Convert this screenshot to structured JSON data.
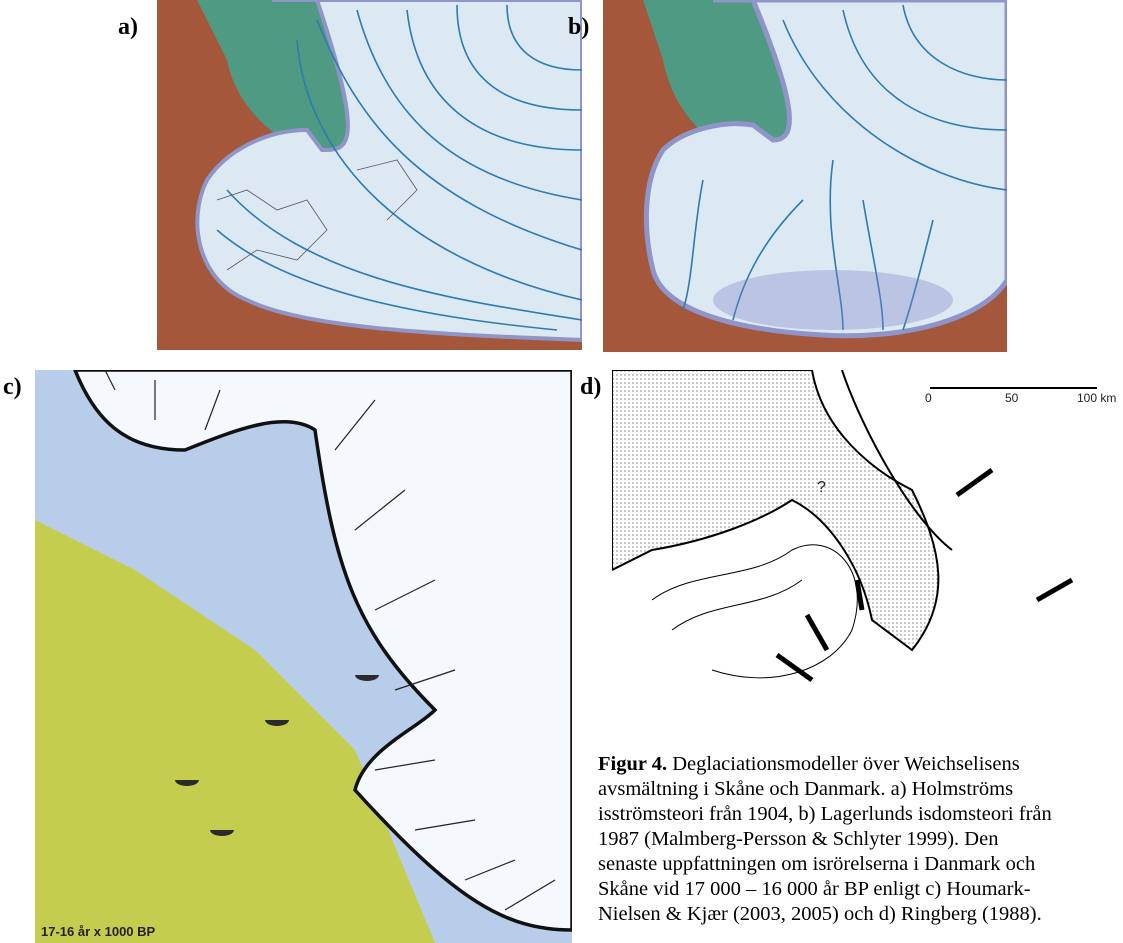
{
  "panels": [
    {
      "label": "a)"
    },
    {
      "label": "b)"
    },
    {
      "label": "c)",
      "caption": "17-16 år x 1000 BP"
    },
    {
      "label": "d)",
      "scale_labels": [
        "0",
        "50",
        "100 km"
      ],
      "annotation": "?"
    }
  ],
  "caption": {
    "title": "Figur 4.",
    "lines": [
      "Deglaciationsmodeller över Weichselisens",
      "avsmältning i Skåne och Danmark. a) Holmströms",
      "isströmsteori från 1904, b) Lagerlunds isdomsteori från",
      "1987 (Malmberg-Persson & Schlyter 1999). Den",
      "senaste uppfattningen om isrörelserna i Danmark och",
      "Skåne vid 17 000 – 16 000 år BP enligt c) Houmark-",
      "Nielsen & Kjær (2003, 2005) och d) Ringberg (1988)."
    ]
  }
}
